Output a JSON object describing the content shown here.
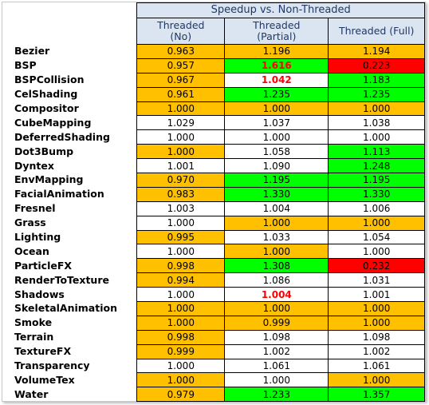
{
  "chart_data": {
    "type": "table",
    "title": "Speedup vs. Non-Threaded",
    "columns": [
      "Threaded\n(No)",
      "Threaded\n(Partial)",
      "Threaded (Full)"
    ],
    "rows": [
      {
        "name": "Bezier",
        "values": [
          "0.963",
          "1.196",
          "1.194"
        ],
        "colors": [
          "#ffc000",
          "#ffc000",
          "#ffc000"
        ],
        "red": [
          false,
          false,
          false
        ]
      },
      {
        "name": "BSP",
        "values": [
          "0.957",
          "1.616",
          "0.223"
        ],
        "colors": [
          "#ffc000",
          "#00ff00",
          "#ff0000"
        ],
        "red": [
          false,
          true,
          false
        ]
      },
      {
        "name": "BSPCollision",
        "values": [
          "0.967",
          "1.042",
          "1.183"
        ],
        "colors": [
          "#ffc000",
          "#ffffff",
          "#00ff00"
        ],
        "red": [
          false,
          true,
          false
        ]
      },
      {
        "name": "CelShading",
        "values": [
          "0.961",
          "1.235",
          "1.235"
        ],
        "colors": [
          "#ffc000",
          "#00ff00",
          "#00ff00"
        ],
        "red": [
          false,
          false,
          false
        ]
      },
      {
        "name": "Compositor",
        "values": [
          "1.000",
          "1.000",
          "1.000"
        ],
        "colors": [
          "#ffc000",
          "#ffc000",
          "#ffc000"
        ],
        "red": [
          false,
          false,
          false
        ]
      },
      {
        "name": "CubeMapping",
        "values": [
          "1.029",
          "1.037",
          "1.038"
        ],
        "colors": [
          "#ffffff",
          "#ffffff",
          "#ffffff"
        ],
        "red": [
          false,
          false,
          false
        ]
      },
      {
        "name": "DeferredShading",
        "values": [
          "1.000",
          "1.000",
          "1.000"
        ],
        "colors": [
          "#ffffff",
          "#ffffff",
          "#ffffff"
        ],
        "red": [
          false,
          false,
          false
        ]
      },
      {
        "name": "Dot3Bump",
        "values": [
          "1.000",
          "1.058",
          "1.113"
        ],
        "colors": [
          "#ffc000",
          "#ffffff",
          "#00ff00"
        ],
        "red": [
          false,
          false,
          false
        ]
      },
      {
        "name": "Dyntex",
        "values": [
          "1.001",
          "1.090",
          "1.248"
        ],
        "colors": [
          "#ffffff",
          "#ffffff",
          "#00ff00"
        ],
        "red": [
          false,
          false,
          false
        ]
      },
      {
        "name": "EnvMapping",
        "values": [
          "0.970",
          "1.195",
          "1.195"
        ],
        "colors": [
          "#ffc000",
          "#00ff00",
          "#00ff00"
        ],
        "red": [
          false,
          false,
          false
        ]
      },
      {
        "name": "FacialAnimation",
        "values": [
          "0.983",
          "1.330",
          "1.330"
        ],
        "colors": [
          "#ffc000",
          "#00ff00",
          "#00ff00"
        ],
        "red": [
          false,
          false,
          false
        ]
      },
      {
        "name": "Fresnel",
        "values": [
          "1.003",
          "1.004",
          "1.006"
        ],
        "colors": [
          "#ffffff",
          "#ffffff",
          "#ffffff"
        ],
        "red": [
          false,
          false,
          false
        ]
      },
      {
        "name": "Grass",
        "values": [
          "1.000",
          "1.000",
          "1.000"
        ],
        "colors": [
          "#ffffff",
          "#ffc000",
          "#ffc000"
        ],
        "red": [
          false,
          false,
          false
        ]
      },
      {
        "name": "Lighting",
        "values": [
          "0.995",
          "1.033",
          "1.054"
        ],
        "colors": [
          "#ffc000",
          "#ffffff",
          "#ffffff"
        ],
        "red": [
          false,
          false,
          false
        ]
      },
      {
        "name": "Ocean",
        "values": [
          "1.000",
          "1.000",
          "1.000"
        ],
        "colors": [
          "#ffffff",
          "#ffc000",
          "#ffffff"
        ],
        "red": [
          false,
          false,
          false
        ]
      },
      {
        "name": "ParticleFX",
        "values": [
          "0.998",
          "1.308",
          "0.232"
        ],
        "colors": [
          "#ffc000",
          "#00ff00",
          "#ff0000"
        ],
        "red": [
          false,
          false,
          false
        ]
      },
      {
        "name": "RenderToTexture",
        "values": [
          "0.994",
          "1.086",
          "1.031"
        ],
        "colors": [
          "#ffc000",
          "#ffffff",
          "#ffffff"
        ],
        "red": [
          false,
          false,
          false
        ]
      },
      {
        "name": "Shadows",
        "values": [
          "1.000",
          "1.004",
          "1.001"
        ],
        "colors": [
          "#ffffff",
          "#ffffff",
          "#ffffff"
        ],
        "red": [
          false,
          true,
          false
        ]
      },
      {
        "name": "SkeletalAnimation",
        "values": [
          "1.000",
          "1.000",
          "1.000"
        ],
        "colors": [
          "#ffc000",
          "#ffc000",
          "#ffc000"
        ],
        "red": [
          false,
          false,
          false
        ]
      },
      {
        "name": "Smoke",
        "values": [
          "1.000",
          "0.999",
          "1.000"
        ],
        "colors": [
          "#ffc000",
          "#ffc000",
          "#ffc000"
        ],
        "red": [
          false,
          false,
          false
        ]
      },
      {
        "name": "Terrain",
        "values": [
          "0.998",
          "1.098",
          "1.098"
        ],
        "colors": [
          "#ffc000",
          "#ffffff",
          "#ffffff"
        ],
        "red": [
          false,
          false,
          false
        ]
      },
      {
        "name": "TextureFX",
        "values": [
          "0.999",
          "1.002",
          "1.002"
        ],
        "colors": [
          "#ffc000",
          "#ffffff",
          "#ffffff"
        ],
        "red": [
          false,
          false,
          false
        ]
      },
      {
        "name": "Transparency",
        "values": [
          "1.000",
          "1.061",
          "1.061"
        ],
        "colors": [
          "#ffffff",
          "#ffffff",
          "#ffffff"
        ],
        "red": [
          false,
          false,
          false
        ]
      },
      {
        "name": "VolumeTex",
        "values": [
          "1.000",
          "1.000",
          "1.000"
        ],
        "colors": [
          "#ffc000",
          "#ffffff",
          "#ffc000"
        ],
        "red": [
          false,
          false,
          false
        ]
      },
      {
        "name": "Water",
        "values": [
          "0.979",
          "1.233",
          "1.357"
        ],
        "colors": [
          "#ffc000",
          "#00ff00",
          "#00ff00"
        ],
        "red": [
          false,
          false,
          false
        ]
      }
    ]
  }
}
